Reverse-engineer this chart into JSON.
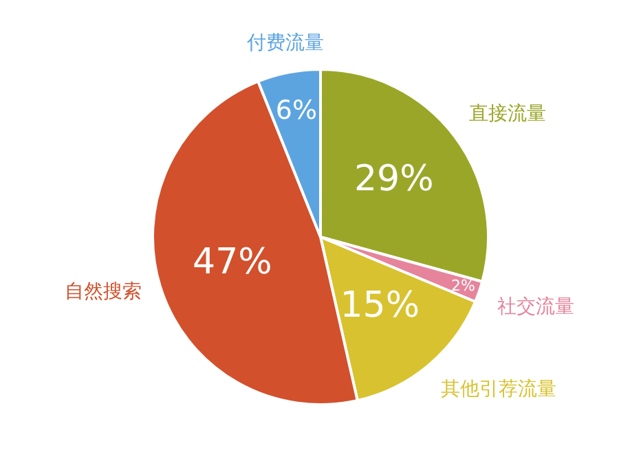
{
  "chart_data": {
    "type": "pie",
    "categories": [
      "直接流量",
      "社交流量",
      "其他引荐流量",
      "自然搜索",
      "付费流量"
    ],
    "values": [
      29,
      2,
      15,
      47,
      6
    ],
    "value_labels": [
      "29%",
      "2%",
      "15%",
      "47%",
      "6%"
    ],
    "colors": [
      "#9aa628",
      "#e6849c",
      "#d8c230",
      "#d2502c",
      "#5ca4e0"
    ],
    "legend": false
  }
}
